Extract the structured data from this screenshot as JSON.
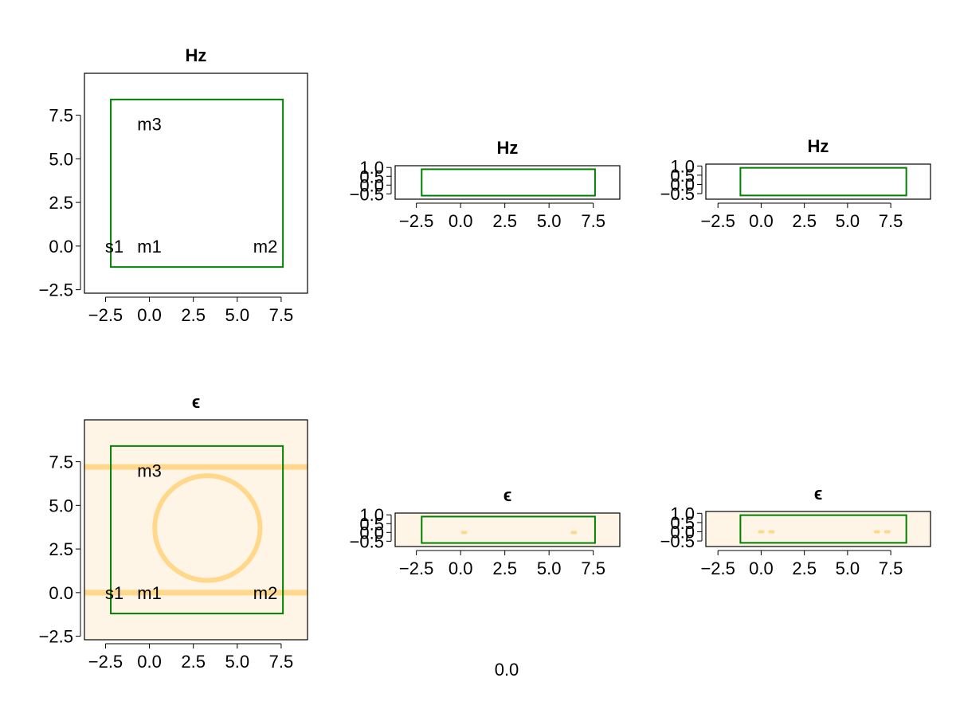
{
  "colors": {
    "frame": "#000000",
    "box": "#008000",
    "eps_background": "#fff5e6",
    "eps_feature": "#ffd27a"
  },
  "footer": {
    "text": "0.0"
  },
  "chart_data": [
    {
      "type": "heatmap",
      "title": "Hz",
      "xticks": [
        "−2.5",
        "0.0",
        "2.5",
        "5.0",
        "7.5"
      ],
      "yticks": [
        "−2.5",
        "0.0",
        "2.5",
        "5.0",
        "7.5"
      ],
      "xlim": [
        -3.7,
        9.0
      ],
      "ylim": [
        -2.7,
        9.9
      ],
      "box": {
        "x": [
          -2.2,
          7.6
        ],
        "y": [
          -1.2,
          8.4
        ]
      },
      "labels": [
        {
          "text": "m3",
          "x": 0.0,
          "y": 7.0
        },
        {
          "text": "s1",
          "x": -2.0,
          "y": 0.0
        },
        {
          "text": "m1",
          "x": 0.0,
          "y": 0.0
        },
        {
          "text": "m2",
          "x": 6.6,
          "y": 0.0
        }
      ]
    },
    {
      "type": "heatmap",
      "title": "Hz",
      "xticks": [
        "−2.5",
        "0.0",
        "2.5",
        "5.0",
        "7.5"
      ],
      "yticks": [
        "1.0",
        "0.5",
        "0.0",
        "−0.5"
      ],
      "xlim": [
        -3.7,
        9.0
      ],
      "ylim": [
        -0.8,
        1.1
      ],
      "box": {
        "x": [
          -2.2,
          7.6
        ],
        "y": [
          -0.6,
          0.9
        ]
      }
    },
    {
      "type": "heatmap",
      "title": "Hz",
      "xticks": [
        "−2.5",
        "0.0",
        "2.5",
        "5.0",
        "7.5"
      ],
      "yticks": [
        "1.0",
        "0.5",
        "0.0",
        "−0.5"
      ],
      "xlim": [
        -3.2,
        9.8
      ],
      "ylim": [
        -0.8,
        1.1
      ],
      "box": {
        "x": [
          -1.2,
          8.4
        ],
        "y": [
          -0.6,
          0.9
        ]
      }
    },
    {
      "type": "heatmap",
      "title": "ϵ",
      "xticks": [
        "−2.5",
        "0.0",
        "2.5",
        "5.0",
        "7.5"
      ],
      "yticks": [
        "−2.5",
        "0.0",
        "2.5",
        "5.0",
        "7.5"
      ],
      "xlim": [
        -3.7,
        9.0
      ],
      "ylim": [
        -2.7,
        9.9
      ],
      "box": {
        "x": [
          -2.2,
          7.6
        ],
        "y": [
          -1.2,
          8.4
        ]
      },
      "waveguides_y": [
        0.0,
        7.2
      ],
      "ring": {
        "cx": 3.3,
        "cy": 3.7,
        "r": 3.0
      },
      "labels": [
        {
          "text": "m3",
          "x": 0.0,
          "y": 7.0
        },
        {
          "text": "s1",
          "x": -2.0,
          "y": 0.0
        },
        {
          "text": "m1",
          "x": 0.0,
          "y": 0.0
        },
        {
          "text": "m2",
          "x": 6.6,
          "y": 0.0
        }
      ]
    },
    {
      "type": "heatmap",
      "title": "ϵ",
      "xticks": [
        "−2.5",
        "0.0",
        "2.5",
        "5.0",
        "7.5"
      ],
      "yticks": [
        "1.0",
        "0.5",
        "0.0",
        "−0.5"
      ],
      "xlim": [
        -3.7,
        9.0
      ],
      "ylim": [
        -0.8,
        1.1
      ],
      "box": {
        "x": [
          -2.2,
          7.6
        ],
        "y": [
          -0.6,
          0.9
        ]
      },
      "blips": [
        {
          "x": 0.2,
          "y": 0.0
        },
        {
          "x": 6.4,
          "y": 0.0
        }
      ]
    },
    {
      "type": "heatmap",
      "title": "ϵ",
      "xticks": [
        "−2.5",
        "0.0",
        "2.5",
        "5.0",
        "7.5"
      ],
      "yticks": [
        "1.0",
        "0.5",
        "0.0",
        "−0.5"
      ],
      "xlim": [
        -3.2,
        9.8
      ],
      "ylim": [
        -0.8,
        1.1
      ],
      "box": {
        "x": [
          -1.2,
          8.4
        ],
        "y": [
          -0.6,
          0.9
        ]
      },
      "blips": [
        {
          "x": 0.0,
          "y": 0.0
        },
        {
          "x": 0.6,
          "y": 0.0
        },
        {
          "x": 6.7,
          "y": 0.0
        },
        {
          "x": 7.3,
          "y": 0.0
        }
      ]
    }
  ]
}
